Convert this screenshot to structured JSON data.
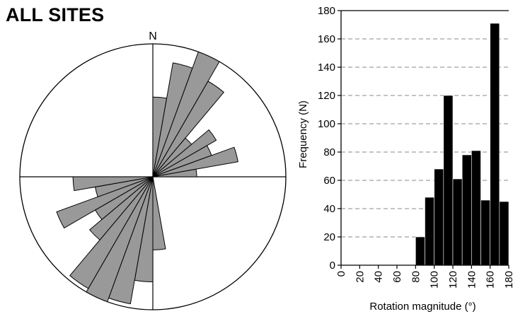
{
  "title": "ALL SITES",
  "chart_data": [
    {
      "type": "rose",
      "north_label": "N",
      "colors": {
        "petal_fill": "#999999",
        "stroke": "#000000"
      },
      "petal_width_deg": 10,
      "petals": [
        {
          "azimuth": 5,
          "radius": 0.6
        },
        {
          "azimuth": 15,
          "radius": 0.87
        },
        {
          "azimuth": 25,
          "radius": 1.0
        },
        {
          "azimuth": 35,
          "radius": 0.83
        },
        {
          "azimuth": 45,
          "radius": 0.38
        },
        {
          "azimuth": 55,
          "radius": 0.55
        },
        {
          "azimuth": 65,
          "radius": 0.47
        },
        {
          "azimuth": 75,
          "radius": 0.65
        },
        {
          "azimuth": 85,
          "radius": 0.33
        },
        {
          "azimuth": 175,
          "radius": 0.55
        },
        {
          "azimuth": 185,
          "radius": 0.79
        },
        {
          "azimuth": 195,
          "radius": 0.97
        },
        {
          "azimuth": 205,
          "radius": 1.0
        },
        {
          "azimuth": 215,
          "radius": 0.97
        },
        {
          "azimuth": 225,
          "radius": 0.62
        },
        {
          "azimuth": 235,
          "radius": 0.5
        },
        {
          "azimuth": 245,
          "radius": 0.77
        },
        {
          "azimuth": 255,
          "radius": 0.44
        },
        {
          "azimuth": 265,
          "radius": 0.6
        }
      ]
    },
    {
      "type": "bar",
      "xlabel": "Rotation magnitude (°)",
      "ylabel": "Frequency (N)",
      "ylim": [
        0,
        180
      ],
      "yticks": [
        0,
        20,
        40,
        60,
        80,
        100,
        120,
        140,
        160,
        180
      ],
      "xlim": [
        0,
        180
      ],
      "xticks": [
        "0",
        "20",
        "40",
        "60",
        "80",
        "100",
        "120",
        "140",
        "160",
        "180"
      ],
      "bin_width": 10,
      "bins": [
        {
          "start": 80,
          "value": 20
        },
        {
          "start": 90,
          "value": 48
        },
        {
          "start": 100,
          "value": 68
        },
        {
          "start": 110,
          "value": 120
        },
        {
          "start": 120,
          "value": 61
        },
        {
          "start": 130,
          "value": 78
        },
        {
          "start": 140,
          "value": 81
        },
        {
          "start": 150,
          "value": 46
        },
        {
          "start": 160,
          "value": 171
        },
        {
          "start": 170,
          "value": 45
        }
      ],
      "grid": "horizontal dashed",
      "colors": {
        "bar_fill": "#000000",
        "grid": "#888888"
      }
    }
  ]
}
